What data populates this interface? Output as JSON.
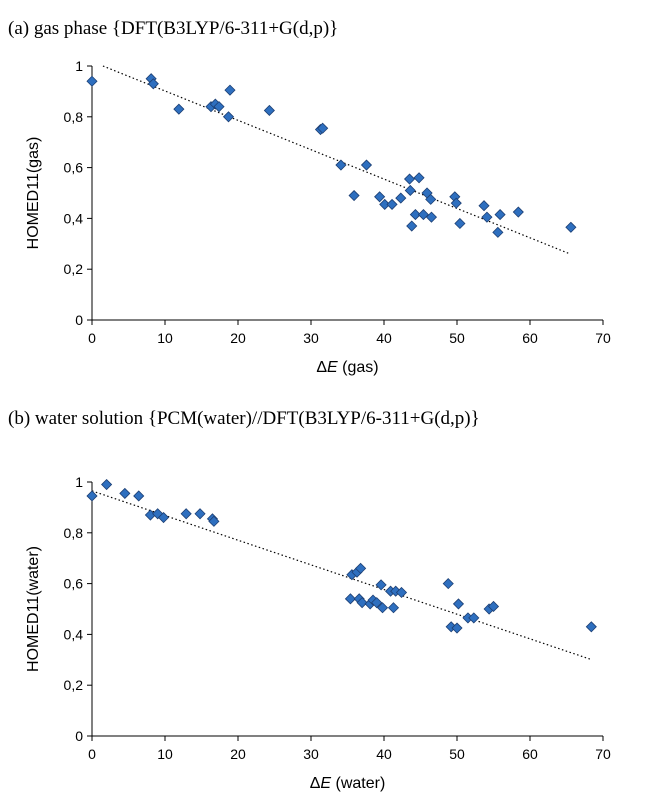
{
  "chart_data": [
    {
      "type": "scatter",
      "title": "(a) gas phase {DFT(B3LYP/6-311+G(d,p)}",
      "xlabel_symbol": "ΔE",
      "xlabel_rest": " (gas)",
      "ylabel": "HOMED11(gas)",
      "xlim": [
        0,
        70
      ],
      "ylim": [
        0,
        1
      ],
      "xticks": [
        "0",
        "10",
        "20",
        "30",
        "40",
        "50",
        "60",
        "70"
      ],
      "yticks": [
        "0",
        "0,2",
        "0,4",
        "0,6",
        "0,8",
        "1"
      ],
      "grid": false,
      "marker_color": "#2e6fbf",
      "trendline": {
        "style": "dotted",
        "x": [
          1.5,
          65.5
        ],
        "y": [
          1.0,
          0.26
        ]
      },
      "points": [
        [
          0,
          0.94
        ],
        [
          8.1,
          0.95
        ],
        [
          8.4,
          0.93
        ],
        [
          11.9,
          0.83
        ],
        [
          16.3,
          0.84
        ],
        [
          16.9,
          0.85
        ],
        [
          17.4,
          0.84
        ],
        [
          18.7,
          0.8
        ],
        [
          18.9,
          0.905
        ],
        [
          24.3,
          0.825
        ],
        [
          31.3,
          0.75
        ],
        [
          31.6,
          0.755
        ],
        [
          34.1,
          0.61
        ],
        [
          35.9,
          0.49
        ],
        [
          37.6,
          0.61
        ],
        [
          39.4,
          0.485
        ],
        [
          40.1,
          0.455
        ],
        [
          41.1,
          0.455
        ],
        [
          42.3,
          0.48
        ],
        [
          43.5,
          0.555
        ],
        [
          43.6,
          0.51
        ],
        [
          43.8,
          0.37
        ],
        [
          44.3,
          0.415
        ],
        [
          44.8,
          0.56
        ],
        [
          45.4,
          0.415
        ],
        [
          45.9,
          0.5
        ],
        [
          46.4,
          0.475
        ],
        [
          46.5,
          0.405
        ],
        [
          49.7,
          0.485
        ],
        [
          49.9,
          0.46
        ],
        [
          50.4,
          0.38
        ],
        [
          53.7,
          0.45
        ],
        [
          54.1,
          0.405
        ],
        [
          55.6,
          0.345
        ],
        [
          55.9,
          0.415
        ],
        [
          58.4,
          0.425
        ],
        [
          65.6,
          0.365
        ]
      ]
    },
    {
      "type": "scatter",
      "title": "(b) water solution {PCM(water)//DFT(B3LYP/6-311+G(d,p)}",
      "xlabel_symbol": "ΔE",
      "xlabel_rest": " (water)",
      "ylabel": "HOMED11(water)",
      "xlim": [
        0,
        70
      ],
      "ylim": [
        0,
        1
      ],
      "xticks": [
        "0",
        "10",
        "20",
        "30",
        "40",
        "50",
        "60",
        "70"
      ],
      "yticks": [
        "0",
        "0,2",
        "0,4",
        "0,6",
        "0,8",
        "1"
      ],
      "grid": false,
      "marker_color": "#2e6fbf",
      "trendline": {
        "style": "dotted",
        "x": [
          0,
          68.5
        ],
        "y": [
          0.965,
          0.3
        ]
      },
      "points": [
        [
          0,
          0.945
        ],
        [
          2.0,
          0.99
        ],
        [
          4.5,
          0.955
        ],
        [
          6.4,
          0.945
        ],
        [
          8.0,
          0.87
        ],
        [
          9.0,
          0.875
        ],
        [
          9.8,
          0.86
        ],
        [
          12.9,
          0.875
        ],
        [
          14.8,
          0.875
        ],
        [
          16.5,
          0.855
        ],
        [
          16.7,
          0.845
        ],
        [
          35.4,
          0.54
        ],
        [
          35.6,
          0.635
        ],
        [
          36.3,
          0.645
        ],
        [
          36.6,
          0.54
        ],
        [
          36.8,
          0.66
        ],
        [
          37.0,
          0.525
        ],
        [
          38.1,
          0.52
        ],
        [
          38.5,
          0.535
        ],
        [
          39.0,
          0.525
        ],
        [
          39.6,
          0.595
        ],
        [
          39.8,
          0.505
        ],
        [
          40.9,
          0.57
        ],
        [
          41.3,
          0.505
        ],
        [
          41.6,
          0.57
        ],
        [
          42.4,
          0.565
        ],
        [
          48.8,
          0.6
        ],
        [
          49.2,
          0.43
        ],
        [
          50.0,
          0.425
        ],
        [
          50.2,
          0.52
        ],
        [
          51.5,
          0.465
        ],
        [
          52.3,
          0.465
        ],
        [
          54.4,
          0.5
        ],
        [
          55.0,
          0.51
        ],
        [
          68.4,
          0.43
        ]
      ]
    }
  ]
}
